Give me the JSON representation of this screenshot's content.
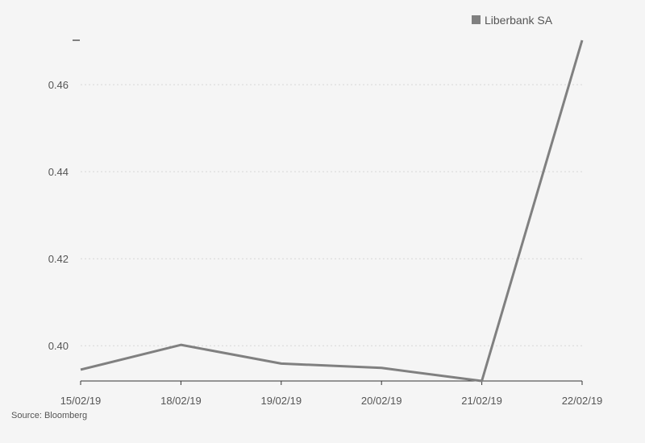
{
  "chart_data": {
    "type": "line",
    "x": [
      "15/02/19",
      "18/02/19",
      "19/02/19",
      "20/02/19",
      "21/02/19",
      "22/02/19"
    ],
    "series": [
      {
        "name": "Liberbank SA",
        "values": [
          0.3945,
          0.4002,
          0.3959,
          0.3949,
          0.3919,
          0.4702
        ]
      }
    ],
    "y_ticks": [
      0.4,
      0.42,
      0.44,
      0.46
    ],
    "y_tick_labels": [
      "0.40",
      "0.42",
      "0.44",
      "0.46"
    ],
    "ylim": [
      0.3919,
      0.4702
    ],
    "grid": "horizontal dotted",
    "legend_position": "top-right",
    "line_color": "#808080"
  },
  "legend": {
    "label": "Liberbank SA"
  },
  "footer": {
    "source": "Source: Bloomberg"
  }
}
